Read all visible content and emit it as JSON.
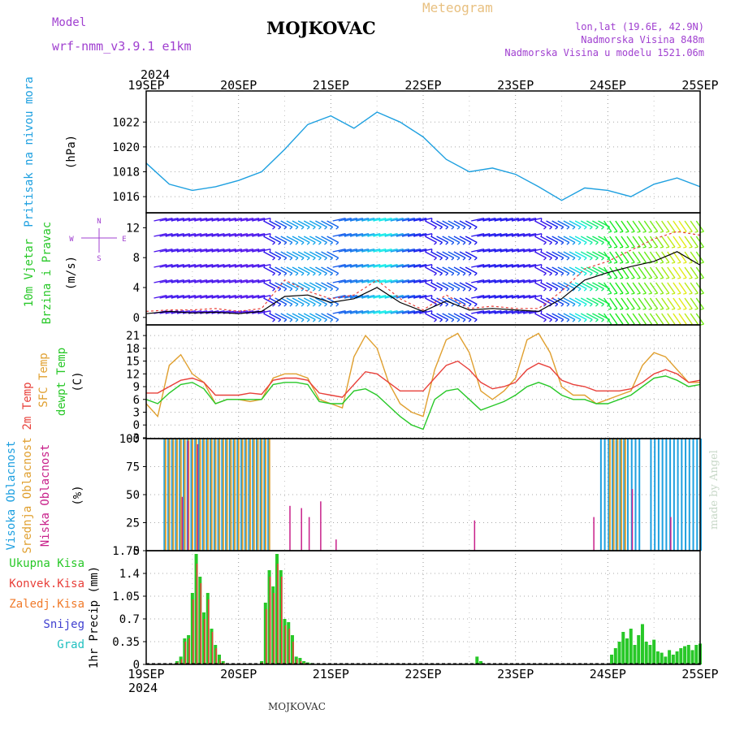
{
  "header": {
    "model_label": "Model",
    "model_name": "wrf-nmm_v3.9.1  e1km",
    "station": "MOJKOVAC",
    "product": "Meteogram",
    "lonlat": "lon,lat (19.6E, 42.9N)",
    "elevation": "Nadmorska Visina 848m",
    "model_elevation": "Nadmorska Visina u modelu 1521.06m",
    "year": "2024",
    "footer_station": "MOJKOVAC",
    "credit": "made by Angel"
  },
  "colors": {
    "pressure": "#1ea0e0",
    "temp2m": "#e8403a",
    "sfc_temp": "#e0a030",
    "dewpoint": "#28c828",
    "wind_label": "#28c828",
    "cloud_high": "#1ea0e0",
    "cloud_mid": "#e0a030",
    "cloud_low": "#c8208a",
    "precip_total": "#28c828",
    "precip_conv": "#e8403a",
    "precip_strat": "#f07a2a",
    "snow": "#4040d0",
    "hail": "#20c0c0",
    "accent_purple": "#a040d0",
    "gust": "#e8403a",
    "mean_wind": "#000000"
  },
  "chart_data": [
    {
      "id": "pressure",
      "type": "line",
      "ylabel": "Pritisak na nivou mora",
      "units": "(hPa)",
      "yticks": [
        "1016",
        "1018",
        "1020",
        "1022"
      ],
      "ylim": [
        1014.7,
        1024.5
      ],
      "x_hours": [
        0,
        6,
        12,
        18,
        24,
        30,
        36,
        42,
        48,
        54,
        60,
        66,
        72,
        78,
        84,
        90,
        96,
        102,
        108,
        114,
        120,
        126,
        132,
        138,
        144
      ],
      "series": [
        {
          "values": [
            1018.7,
            1017.0,
            1016.5,
            1016.8,
            1017.3,
            1018.0,
            1019.8,
            1021.8,
            1022.5,
            1021.5,
            1022.8,
            1022.0,
            1020.8,
            1019.0,
            1018.0,
            1018.3,
            1017.8,
            1016.8,
            1015.7,
            1016.7,
            1016.5,
            1016.0,
            1017.0,
            1017.5,
            1016.8
          ]
        }
      ]
    },
    {
      "id": "wind",
      "type": "line",
      "ylabel": "10m Vjetar Brzina i Pravac",
      "units": "(m/s)",
      "compass": [
        "N",
        "E",
        "S",
        "W"
      ],
      "yticks": [
        "0",
        "4",
        "8",
        "12"
      ],
      "ylim": [
        -1,
        14
      ],
      "x_hours": [
        0,
        6,
        12,
        18,
        24,
        30,
        36,
        42,
        48,
        54,
        60,
        66,
        72,
        78,
        84,
        90,
        96,
        102,
        108,
        114,
        120,
        126,
        132,
        138,
        144
      ],
      "series": [
        {
          "name": "mean",
          "values": [
            0.5,
            0.8,
            0.6,
            0.7,
            0.5,
            0.8,
            2.8,
            3.0,
            2.0,
            2.5,
            4.0,
            2.0,
            0.8,
            2.2,
            1.0,
            1.2,
            1.0,
            0.8,
            2.5,
            5.0,
            6.0,
            6.8,
            7.5,
            8.8,
            7.0
          ]
        },
        {
          "name": "gust",
          "values": [
            0.8,
            1.0,
            1.0,
            1.2,
            0.8,
            1.2,
            5.0,
            3.5,
            2.5,
            3.0,
            5.0,
            2.5,
            1.0,
            3.0,
            1.2,
            1.5,
            1.2,
            1.2,
            3.5,
            6.5,
            7.5,
            9.0,
            10.5,
            11.5,
            11.0
          ]
        }
      ],
      "barb_hue_by_speed": true
    },
    {
      "id": "temperature",
      "type": "line",
      "ylabel": "2m Temp",
      "ylabel2": "SFC Temp",
      "ylabel3": "dewpt Temp",
      "units": "(C)",
      "yticks": [
        "-3",
        "0",
        "3",
        "6",
        "9",
        "12",
        "15",
        "18",
        "21"
      ],
      "ylim": [
        -3.2,
        23.5
      ],
      "x_hours": [
        0,
        3,
        6,
        9,
        12,
        15,
        18,
        21,
        24,
        27,
        30,
        33,
        36,
        39,
        42,
        45,
        48,
        51,
        54,
        57,
        60,
        63,
        66,
        69,
        72,
        75,
        78,
        81,
        84,
        87,
        90,
        93,
        96,
        99,
        102,
        105,
        108,
        111,
        114,
        117,
        120,
        123,
        126,
        129,
        132,
        135,
        138,
        141,
        144
      ],
      "series": [
        {
          "name": "2m Temp",
          "values": [
            7.5,
            7.5,
            9.0,
            10.5,
            11.0,
            10.0,
            7.0,
            7.0,
            7.0,
            7.5,
            7.2,
            10.5,
            11.0,
            11.0,
            10.5,
            7.5,
            7.0,
            6.5,
            9.5,
            12.5,
            12.0,
            10.0,
            8.0,
            8.0,
            8.0,
            11.0,
            14.0,
            15.0,
            13.0,
            10.0,
            8.5,
            9.0,
            10.0,
            13.0,
            14.5,
            13.5,
            10.5,
            9.5,
            9.0,
            8.0,
            8.0,
            8.0,
            8.5,
            10.0,
            12.0,
            13.0,
            12.0,
            10.0,
            10.5
          ]
        },
        {
          "name": "SFC Temp",
          "values": [
            5.0,
            2.0,
            14.0,
            16.5,
            12.0,
            10.0,
            5.0,
            6.0,
            6.0,
            5.5,
            6.0,
            11.0,
            12.0,
            12.0,
            11.0,
            6.0,
            5.0,
            4.0,
            16.0,
            21.0,
            18.0,
            10.0,
            5.0,
            3.0,
            2.0,
            13.0,
            20.0,
            21.5,
            17.0,
            8.0,
            6.0,
            8.0,
            11.0,
            20.0,
            21.5,
            17.0,
            9.0,
            7.0,
            7.0,
            5.0,
            6.0,
            7.0,
            8.0,
            14.0,
            17.0,
            16.0,
            13.0,
            10.0,
            10.0
          ]
        },
        {
          "name": "dewpt Temp",
          "values": [
            6.0,
            5.0,
            7.5,
            9.5,
            10.0,
            8.5,
            5.0,
            6.0,
            6.0,
            6.0,
            6.0,
            9.5,
            10.0,
            10.0,
            9.5,
            5.5,
            5.0,
            5.0,
            8.0,
            8.5,
            7.0,
            4.5,
            2.0,
            0.0,
            -1.0,
            6.0,
            8.0,
            8.5,
            6.0,
            3.5,
            4.5,
            5.5,
            7.0,
            9.0,
            10.0,
            9.0,
            7.0,
            6.0,
            6.0,
            5.0,
            5.0,
            6.0,
            7.0,
            9.0,
            11.0,
            11.5,
            10.5,
            9.0,
            9.5
          ]
        }
      ]
    },
    {
      "id": "clouds",
      "type": "bar",
      "ylabel": "Visoka Oblacnost",
      "ylabel2": "Srednja Oblacnost",
      "ylabel3": "Niska Oblacnost",
      "units": "(%)",
      "yticks": [
        "0",
        "25",
        "50",
        "75",
        "100"
      ],
      "ylim": [
        0,
        100
      ],
      "spans": [
        {
          "series": "Visoka",
          "from_h": 4.5,
          "to_h": 32.0,
          "value": 100
        },
        {
          "series": "Srednja",
          "from_h": 4.5,
          "to_h": 32.0,
          "value": 100
        },
        {
          "series": "Visoka",
          "from_h": 118.0,
          "to_h": 128.0,
          "value": 100
        },
        {
          "series": "Srednja",
          "from_h": 120.0,
          "to_h": 125.0,
          "value": 100
        },
        {
          "series": "Visoka",
          "from_h": 131.0,
          "to_h": 144.0,
          "value": 100
        }
      ],
      "low_spikes": [
        {
          "h": 9.0,
          "value": 48
        },
        {
          "h": 10.5,
          "value": 98
        },
        {
          "h": 13.0,
          "value": 95
        },
        {
          "h": 37.0,
          "value": 40
        },
        {
          "h": 40.0,
          "value": 38
        },
        {
          "h": 42.0,
          "value": 30
        },
        {
          "h": 45.0,
          "value": 44
        },
        {
          "h": 49.0,
          "value": 10
        },
        {
          "h": 85.0,
          "value": 27
        },
        {
          "h": 116.0,
          "value": 30
        },
        {
          "h": 126.0,
          "value": 55
        },
        {
          "h": 136.0,
          "value": 30
        }
      ]
    },
    {
      "id": "precipitation",
      "type": "bar",
      "ylabel": "1hr Precip",
      "units": "(mm)",
      "legend": [
        "Ukupna Kisa",
        "Konvek.Kisa",
        "Zaledj.Kisa",
        "Snijeg",
        "Grad"
      ],
      "yticks": [
        "0",
        "0.35",
        "0.7",
        "1.05",
        "1.4",
        "1.75"
      ],
      "ylim": [
        0,
        1.75
      ],
      "x_hours": [
        8,
        9,
        10,
        11,
        12,
        13,
        14,
        15,
        16,
        17,
        18,
        19,
        20,
        30,
        31,
        32,
        33,
        34,
        35,
        36,
        37,
        38,
        39,
        40,
        41,
        42,
        43,
        86,
        87,
        121,
        122,
        123,
        124,
        125,
        126,
        127,
        128,
        129,
        130,
        131,
        132,
        133,
        134,
        135,
        136,
        137,
        138,
        139,
        140,
        141,
        142,
        143,
        144
      ],
      "total": [
        0.05,
        0.12,
        0.4,
        0.45,
        1.1,
        1.7,
        1.35,
        0.8,
        1.1,
        0.55,
        0.3,
        0.15,
        0.05,
        0.05,
        0.95,
        1.45,
        1.2,
        1.7,
        1.45,
        0.7,
        0.65,
        0.45,
        0.12,
        0.1,
        0.05,
        0.03,
        0.02,
        0.12,
        0.05,
        0.15,
        0.25,
        0.35,
        0.5,
        0.4,
        0.55,
        0.3,
        0.45,
        0.62,
        0.35,
        0.3,
        0.38,
        0.2,
        0.18,
        0.12,
        0.22,
        0.15,
        0.2,
        0.25,
        0.28,
        0.3,
        0.22,
        0.3,
        0.32
      ],
      "convective": [
        0.03,
        0.08,
        0.35,
        0.4,
        1.0,
        1.55,
        1.25,
        0.7,
        1.0,
        0.5,
        0.25,
        0.08,
        0.02,
        0.03,
        0.85,
        1.35,
        1.1,
        1.55,
        1.35,
        0.6,
        0.55,
        0.35,
        0.08,
        0.05,
        0.02,
        0.01,
        0.01,
        0.0,
        0.0,
        0.0,
        0.0,
        0.0,
        0.0,
        0.0,
        0.0,
        0.0,
        0.0,
        0.0,
        0.0,
        0.0,
        0.0,
        0.0,
        0.0,
        0.0,
        0.0,
        0.0,
        0.0,
        0.0,
        0.0,
        0.0,
        0.0,
        0.0,
        0.0
      ]
    }
  ],
  "x_axis": {
    "day_labels": [
      "19SEP",
      "20SEP",
      "21SEP",
      "22SEP",
      "23SEP",
      "24SEP",
      "25SEP"
    ],
    "hours_total": 144
  }
}
